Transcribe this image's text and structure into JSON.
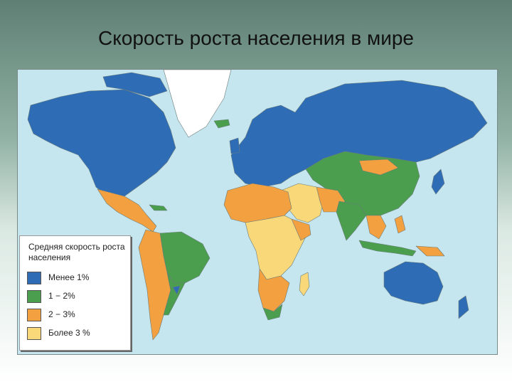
{
  "title": "Скорость роста населения в мире",
  "legend": {
    "title": "Средняя скорость роста населения",
    "items": [
      {
        "label": "Менее 1%",
        "color": "#2e6db5"
      },
      {
        "label": "1 − 2%",
        "color": "#4a9e4e"
      },
      {
        "label": "2 − 3%",
        "color": "#f2a040"
      },
      {
        "label": "Более 3 %",
        "color": "#f8d878"
      }
    ]
  },
  "colors": {
    "ocean": "#c6e6ef",
    "greenland": "#ffffff",
    "low": "#2e6db5",
    "mid": "#4a9e4e",
    "high": "#f2a040",
    "very_high": "#f8d878"
  }
}
